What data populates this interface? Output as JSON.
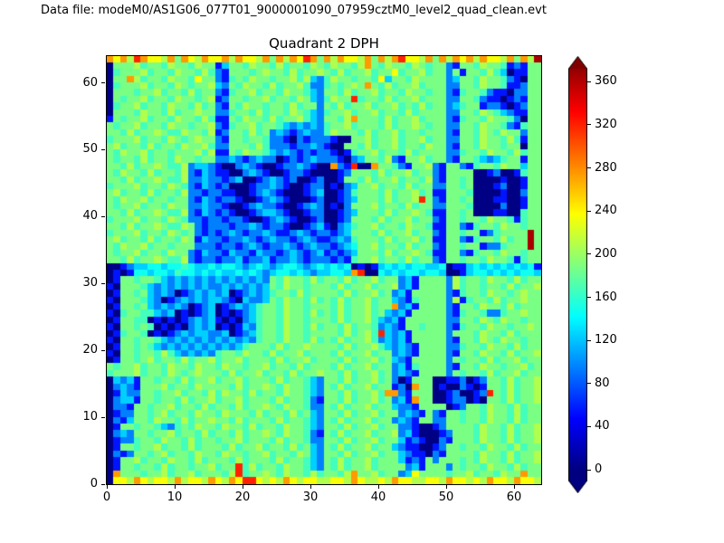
{
  "header": {
    "data_file_label": "Data file: modeM0/AS1G06_077T01_9000001090_07959cztM0_level2_quad_clean.evt"
  },
  "chart_data": {
    "type": "heatmap",
    "title": "Quadrant 2 DPH",
    "xlabel": "",
    "ylabel": "",
    "x_range": [
      0,
      64
    ],
    "y_range": [
      0,
      64
    ],
    "x_ticks": [
      0,
      10,
      20,
      30,
      40,
      50,
      60
    ],
    "y_ticks": [
      0,
      10,
      20,
      30,
      40,
      50,
      60
    ],
    "colormap": "jet",
    "vmin": 0,
    "vmax": 380,
    "grid": false,
    "colorbar": {
      "ticks": [
        0,
        40,
        80,
        120,
        160,
        200,
        240,
        280,
        320,
        360
      ],
      "extend": "both",
      "body_value_range": [
        -10,
        372
      ]
    },
    "value_levels": {
      "0": 2,
      "1": 55,
      "2": 95,
      "3": 125,
      "4": 148,
      "5": 168,
      "6": 188,
      "7": 208,
      "8": 235,
      "9": 275,
      "A": 320,
      "B": 365
    },
    "rows_order": "top-to-bottom (y=63 first, y=0 last), 64 chars per row (x=0..63)",
    "matrix_rows": [
      "9897A988796987988979887969798A9697988796979A8879697989798879697B",
      "0666756657665766136657665756657657665796576657656621665766512166",
      "0566675665766575216665676657566765756675668566756626166575301166",
      "0669756657665866215657665667573257665665836657666623665766521066",
      "0566675665765667326576657566752256567696575667566622665766511266",
      "0666566756657566215667566576653266575667566576656621566521102266",
      "065667566576656712665667566576325766A566575667566622665211012166",
      "0566756657665756216576656657566265756675667565756623566122101266",
      "0666576657566766225665756657653256675667566575666622665765321166",
      "1656675665766575116576657566753266579666575667566621566576652066",
      "6566756657665667215667566532323256675666575667656622665766521566",
      "6657566765576657126657562321232257666575667566566621665765766266",
      "5666756657656766216656652210212221006675667566756622665766575166",
      "6756657566576675226665752221223210066575667566576621665766566066",
      "6576675665666757116576653232121221015667566575666622566576657566",
      "6566575665766566223212322012123222102366572166756621665323566166",
      "665756676557233210023210012232100921A009665216672166215665766366",
      "6576657566572132110023210012210000126665756675662166660012001566",
      "6657566765572232212300123212001200166575667566572166560000100166",
      "5666756657652132120001223210012201023667566575662266560001200166",
      "6756657566572212211001232100012300125666575667561166650000100266",
      "657667566566213212210012321000120012366657566 7A62166560001100166",
      "6566756657662232210012322100123201026667566575662266650000200166",
      "6657566765572132121001233210012200123666575667651166560001100566",
      "5666756657652212212210012321001200126665756675662166566576651566",
      "6657566765576212221223212210012310235667566576651166215665766566",
      "5666756657656212123212232112321221236665756675662166566125666 6B",
      "67566575665761322122321232212321123256665756675611662156657566 B",
      "6576675665666222122123212232123221234667566575662166566122566 6B",
      "6566756657662132213221322123212312123666575667651166215665766566",
      "6657566765572122122312231223212221215667566575662166566576651566",
      "0012334434454334344323432344323434340101343434433401134343434341",
      "010144344354434343343432344343233443 9A00434344344300134434343443",
      "0166566532323232323232326576657566575667566231666627566576657566",
      "1066653232323232232323236576656665756675667231666627566566575667",
      "0166563232012323230123235665756666575667562316666621566576656766",
      "1066653201232323321032236576657565756675663215666627156657566766",
      "0166563232320123012323566576656665756675669231666621665766575666",
      "1056655323010123010123566576657565756675632316666621566522566766",
      "0166550101012323101023566576656665756675323166666622665765766566",
      "1066565010102323010132566576657566575665232166566621566576656676",
      "015665010123233223012356657665666657567 5A32316666626665766575666",
      "1066566532323232323232566576657565756675232316666621665765766566",
      "0166565323232323232356665756676666575667532321666622566576657566",
      "1066566575323232566576657566756665756675662321666621665766575667",
      "0166567566575667566756665756675666575667563216666626566575667566",
      "6566756657665766576656675665756665756675662315666621665766566756",
      "5666756657656766657566756657566766575667562321666626566575667566",
      "0323166566575667566756665756653266575667562016660011201266575667",
      "0232166675665766665756676576653265756675661209660100210166575667",
      "01322665667566575766575665766532665756675992166600120012A6575667",
      "0233166566575667566756665756652166575667562319660012201066575667",
      "0221665667566575665756676576652265756675663221666601266576657566",
      "0122665675665766576665756657563266575667566232162166566576657566",
      "0213665766575667665756665756653265756675662321662266566576657566",
      "0166566532565766576657566576653266575667566221001266665766575667",
      "0232665667566575665756676576652165756675667231000126665766575667",
      "0122566576657566566756665756652266575667566312100216665766575667",
      "0166566756657566657566756657563265756675663211001266566576657566",
      "0212665675665766576656675665763266575667566321102166665766575667",
      "0166756657665756665756665756653265756675666312162666565766575667",
      "0166566575665667566A5756657665326575667566662316662656657 6657566",
      "0966656675667566657A56676576657566579667566238666656675665766966",
      "0887987887978879879 8AA87879878877887987787988778879887879 8879887"
    ]
  }
}
